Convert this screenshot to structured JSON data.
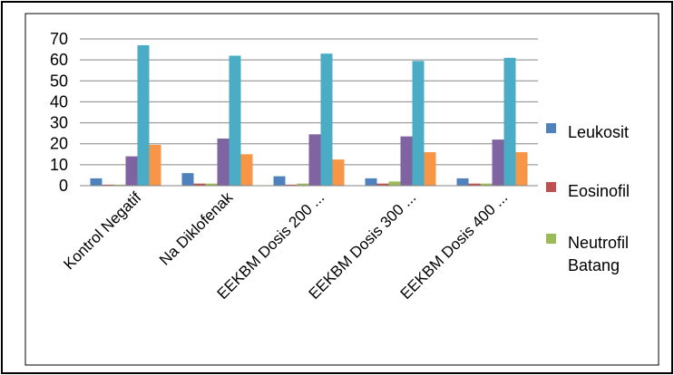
{
  "chart_data": {
    "type": "bar",
    "title": "",
    "xlabel": "",
    "ylabel": "",
    "ylim": [
      0,
      70
    ],
    "yticks": [
      "0",
      "10",
      "20",
      "30",
      "40",
      "50",
      "60",
      "70"
    ],
    "grid": true,
    "legend_position": "right",
    "categories": [
      "Kontrol Negatif",
      "Na Diklofenak",
      "EEKBM Dosis 200 ...",
      "EEKBM Dosis 300 ...",
      "EEKBM Dosis 400 ..."
    ],
    "series": [
      {
        "name": "Leukosit",
        "color": "#4F81BD",
        "values": [
          3.5,
          6.0,
          4.5,
          3.5,
          3.5
        ]
      },
      {
        "name": "Eosinofil",
        "color": "#C0504D",
        "values": [
          0.5,
          1.0,
          0.5,
          1.0,
          1.0
        ]
      },
      {
        "name": "Neutrofil Batang",
        "color": "#9BBB59",
        "values": [
          0.5,
          1.0,
          1.0,
          2.0,
          1.0
        ]
      },
      {
        "name": "",
        "color": "#8064A2",
        "values": [
          14.0,
          22.5,
          24.5,
          23.5,
          22.0
        ]
      },
      {
        "name": "",
        "color": "#4BACC6",
        "values": [
          67.0,
          62.0,
          63.0,
          59.5,
          61.0
        ]
      },
      {
        "name": "",
        "color": "#F79646",
        "values": [
          19.5,
          15.0,
          12.5,
          16.0,
          16.0
        ]
      }
    ]
  }
}
